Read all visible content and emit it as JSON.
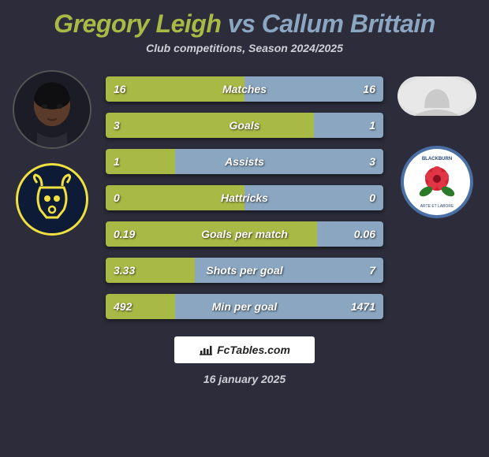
{
  "title": {
    "player1": "Gregory Leigh",
    "vs": "vs",
    "player2": "Callum Brittain"
  },
  "subtitle": "Club competitions, Season 2024/2025",
  "date": "16 january 2025",
  "watermark": "FcTables.com",
  "colors": {
    "player1": "#a9b945",
    "player2": "#8aa6c0",
    "bar_bg": "#3a3a48",
    "page_bg": "#2c2c3a",
    "text_shadow": "rgba(0,0,0,0.7)"
  },
  "clubs": {
    "left": "Oxford United",
    "right": "Blackburn Rovers"
  },
  "stats": [
    {
      "label": "Matches",
      "v1": "16",
      "v2": "16",
      "p1": 50,
      "p2": 50
    },
    {
      "label": "Goals",
      "v1": "3",
      "v2": "1",
      "p1": 75,
      "p2": 25
    },
    {
      "label": "Assists",
      "v1": "1",
      "v2": "3",
      "p1": 25,
      "p2": 75
    },
    {
      "label": "Hattricks",
      "v1": "0",
      "v2": "0",
      "p1": 50,
      "p2": 50
    },
    {
      "label": "Goals per match",
      "v1": "0.19",
      "v2": "0.06",
      "p1": 76,
      "p2": 24
    },
    {
      "label": "Shots per goal",
      "v1": "3.33",
      "v2": "7",
      "p1": 32,
      "p2": 68
    },
    {
      "label": "Min per goal",
      "v1": "492",
      "v2": "1471",
      "p1": 25,
      "p2": 75
    }
  ]
}
